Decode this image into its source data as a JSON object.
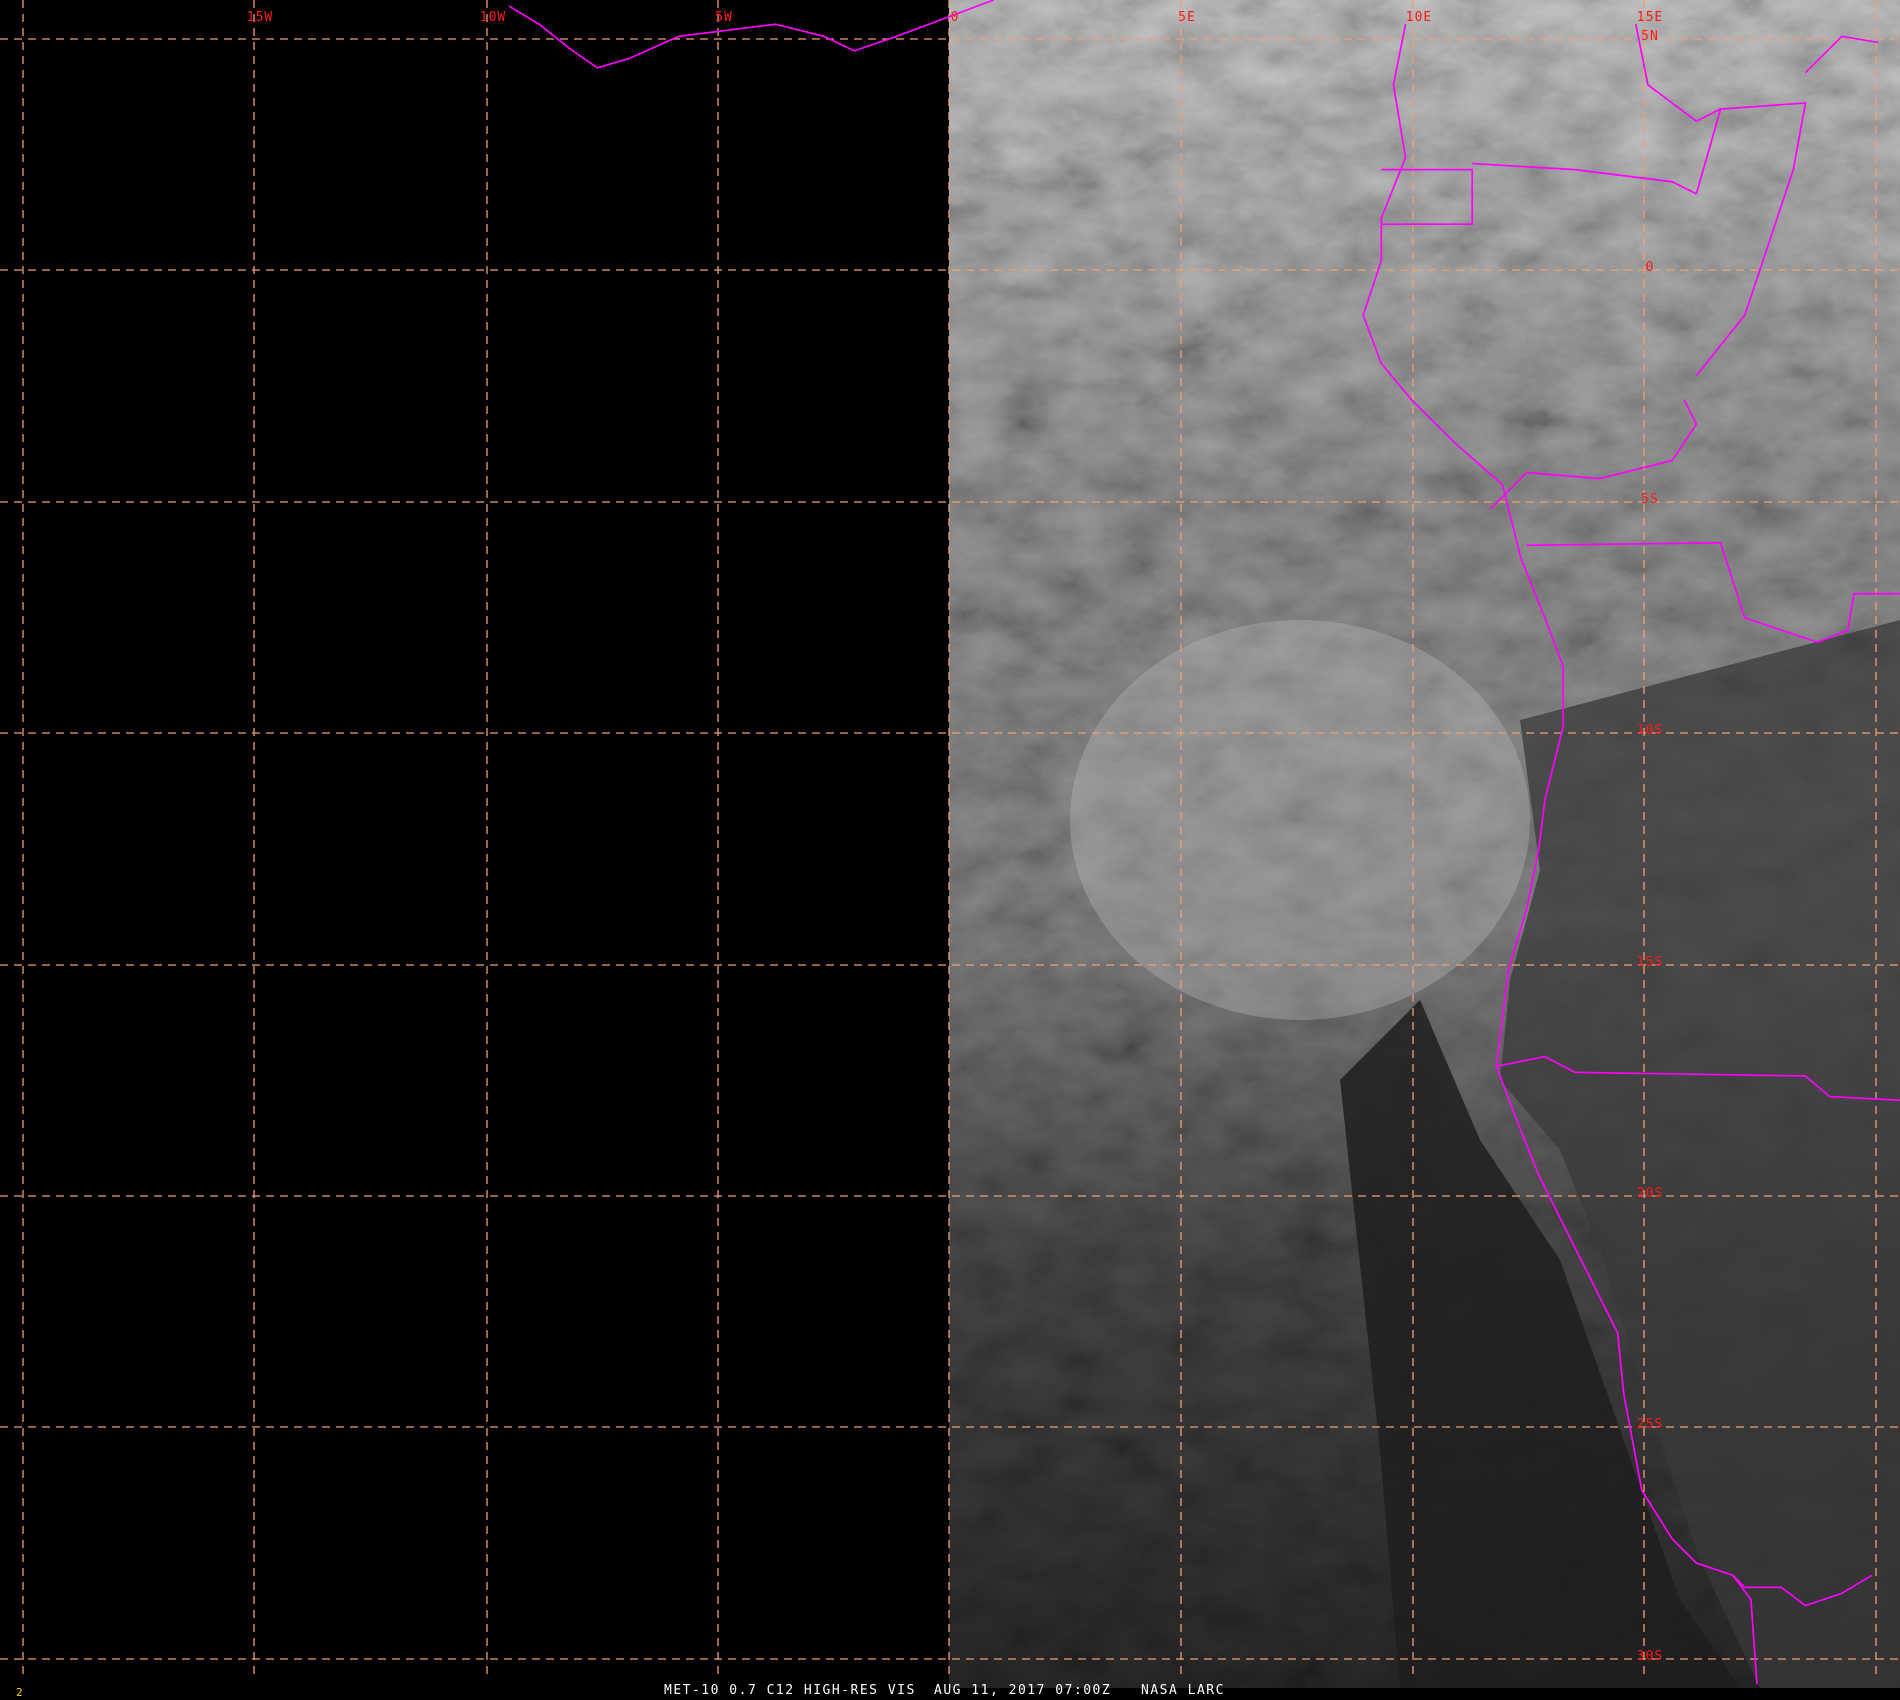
{
  "map": {
    "longitude_labels": [
      "15W",
      "10W",
      "5W",
      "0",
      "5E",
      "10E",
      "15E"
    ],
    "latitude_labels": [
      "5N",
      "0",
      "5S",
      "10S",
      "15S",
      "20S",
      "25S",
      "30S"
    ],
    "colors": {
      "grid": "#f0a070",
      "coastline": "#ff00ff",
      "grid_label": "#ff1a1a",
      "caption": "#ffffff",
      "frame_number": "#ffd000"
    }
  },
  "footer": {
    "frame_number": "2",
    "product": "MET-10 0.7 C12 HIGH-RES VIS",
    "datetime": "AUG 11, 2017 07:00Z",
    "source": "NASA LARC"
  }
}
